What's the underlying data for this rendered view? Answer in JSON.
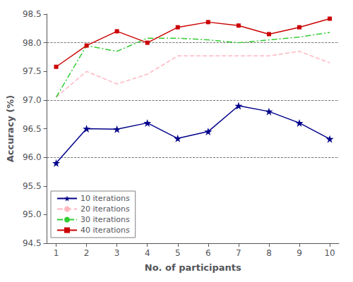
{
  "chart_data": {
    "type": "line",
    "xlabel": "No. of participants",
    "ylabel": "Accuracy (%)",
    "x": [
      1,
      2,
      3,
      4,
      5,
      6,
      7,
      8,
      9,
      10
    ],
    "xlim": [
      0.7,
      10.3
    ],
    "xticks": [
      1,
      2,
      3,
      4,
      5,
      6,
      7,
      8,
      9,
      10
    ],
    "ylim": [
      94.5,
      98.5
    ],
    "yticks": [
      94.5,
      {
        "value": 95.0,
        "label": "95.0"
      },
      95.5,
      {
        "value": 96.0,
        "label": "96.0"
      },
      96.5,
      {
        "value": 97.0,
        "label": "97.0"
      },
      97.5,
      {
        "value": 98.0,
        "label": "98.0"
      },
      98.5
    ],
    "grid": [
      96.0,
      97.0,
      98.0
    ],
    "legend": "lower left",
    "series": [
      {
        "name": "10 iterations",
        "color": "#00008B",
        "marker": "star",
        "line_style": "solid",
        "values": [
          95.9,
          96.5,
          96.49,
          96.6,
          96.33,
          96.45,
          96.9,
          96.8,
          96.6,
          96.32
        ]
      },
      {
        "name": "20 iterations",
        "color": "#FFB6C1",
        "marker": "none",
        "line_style": "dashed",
        "values": [
          97.05,
          97.5,
          97.28,
          97.45,
          97.77,
          97.77,
          97.77,
          97.77,
          97.85,
          97.65
        ]
      },
      {
        "name": "30 iterations",
        "color": "#32CD32",
        "marker": "none",
        "line_style": "dashdot",
        "values": [
          97.05,
          97.95,
          97.85,
          98.08,
          98.08,
          98.05,
          98.0,
          98.05,
          98.1,
          98.18
        ]
      },
      {
        "name": "40 iterations",
        "color": "#CC0000",
        "marker": "square",
        "line_style": "solid",
        "values": [
          97.58,
          97.95,
          98.2,
          98.0,
          98.27,
          98.36,
          98.3,
          98.15,
          98.27,
          98.42
        ]
      }
    ]
  }
}
